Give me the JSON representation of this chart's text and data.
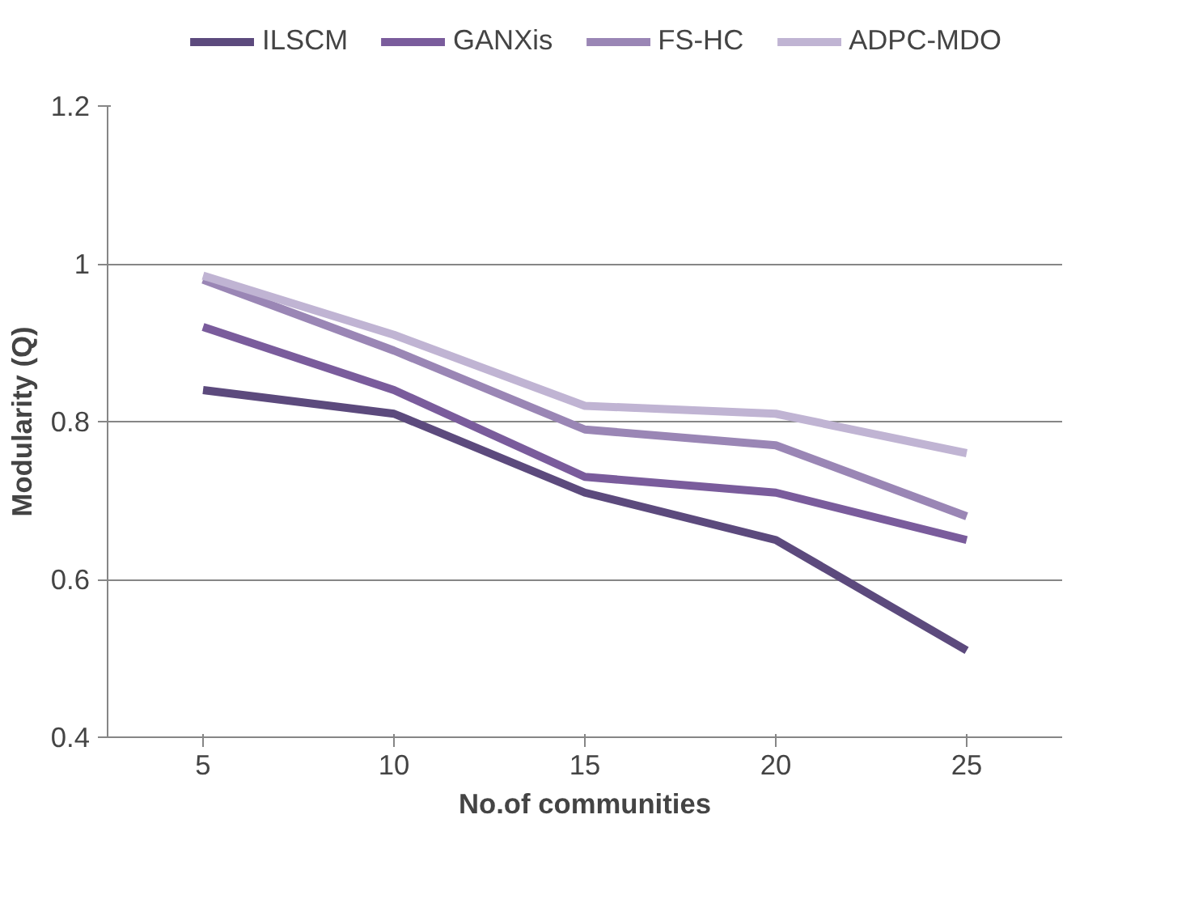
{
  "chart_data": {
    "type": "line",
    "xlabel": "No.of communities",
    "ylabel": "Modularity (Q)",
    "categories": [
      "5",
      "10",
      "15",
      "20",
      "25"
    ],
    "series": [
      {
        "name": "ILSCM",
        "color": "#5c4a7d",
        "values": [
          0.84,
          0.81,
          0.71,
          0.65,
          0.51
        ]
      },
      {
        "name": "GANXis",
        "color": "#7a5c9c",
        "values": [
          0.92,
          0.84,
          0.73,
          0.71,
          0.65
        ]
      },
      {
        "name": "FS-HC",
        "color": "#9a86b5",
        "values": [
          0.98,
          0.89,
          0.79,
          0.77,
          0.68
        ]
      },
      {
        "name": "ADPC-MDO",
        "color": "#c0b4d3",
        "values": [
          0.985,
          0.91,
          0.82,
          0.81,
          0.76
        ]
      }
    ],
    "ylim": [
      0.4,
      1.2
    ],
    "yticks": [
      0.4,
      0.6,
      0.8,
      1,
      1.2
    ],
    "grid": "y",
    "legend": "top",
    "line_style": "solid",
    "marker": "none"
  }
}
